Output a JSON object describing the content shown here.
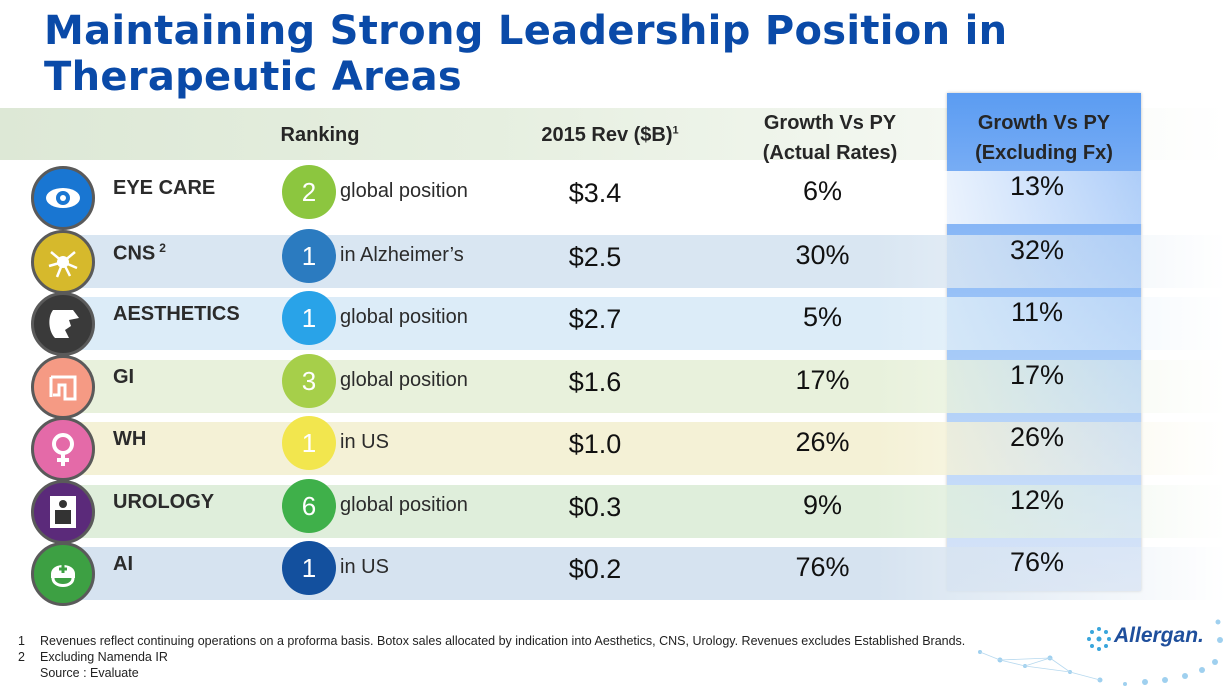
{
  "title": "Maintaining Strong Leadership Position in Therapeutic Areas",
  "headers": {
    "ranking": "Ranking",
    "rev": "2015 Rev ($B)",
    "rev_sup": "1",
    "growth_actual_1": "Growth Vs PY",
    "growth_actual_2": "(Actual Rates)",
    "growth_fx_1": "Growth Vs PY",
    "growth_fx_2": "(Excluding Fx)"
  },
  "rows": [
    {
      "name": "EYE CARE",
      "sup": "",
      "rank": "2",
      "rank_desc": "global position",
      "rev": "$3.4",
      "growth_actual": "6%",
      "growth_fx": "13%",
      "icon": "eye-icon",
      "icon_color": "#1976d2",
      "rank_color": "#8cc63f",
      "band": "#ffffff"
    },
    {
      "name": "CNS",
      "sup": "2",
      "rank": "1",
      "rank_desc": "in Alzheimer’s",
      "rev": "$2.5",
      "growth_actual": "30%",
      "growth_fx": "32%",
      "icon": "neuron-icon",
      "icon_color": "#d6b92c",
      "rank_color": "#2b7bc0",
      "band": "#d9e6f2"
    },
    {
      "name": "AESTHETICS",
      "sup": "",
      "rank": "1",
      "rank_desc": "global position",
      "rev": "$2.7",
      "growth_actual": "5%",
      "growth_fx": "11%",
      "icon": "face-profile-icon",
      "icon_color": "#3a3a3a",
      "rank_color": "#29a3e8",
      "band": "#dcecf8"
    },
    {
      "name": "GI",
      "sup": "",
      "rank": "3",
      "rank_desc": "global position",
      "rev": "$1.6",
      "growth_actual": "17%",
      "growth_fx": "17%",
      "icon": "intestine-icon",
      "icon_color": "#f59a84",
      "rank_color": "#a6cf4a",
      "band": "#e8f1dc"
    },
    {
      "name": "WH",
      "sup": "",
      "rank": "1",
      "rank_desc": "in US",
      "rev": "$1.0",
      "growth_actual": "26%",
      "growth_fx": "26%",
      "icon": "female-symbol-icon",
      "icon_color": "#e46aa8",
      "rank_color": "#f2e64e",
      "band": "#f4f1d6"
    },
    {
      "name": "UROLOGY",
      "sup": "",
      "rank": "6",
      "rank_desc": "global position",
      "rev": "$0.3",
      "growth_actual": "9%",
      "growth_fx": "12%",
      "icon": "restroom-icon",
      "icon_color": "#5b2a7a",
      "rank_color": "#3fb04a",
      "band": "#dfeedb"
    },
    {
      "name": "AI",
      "sup": "",
      "rank": "1",
      "rank_desc": "in US",
      "rev": "$0.2",
      "growth_actual": "76%",
      "growth_fx": "76%",
      "icon": "medic-icon",
      "icon_color": "#3da043",
      "rank_color": "#13509e",
      "band": "#d6e3f0"
    }
  ],
  "footnotes": {
    "fn1_num": "1",
    "fn1": "Revenues reflect continuing operations on a proforma basis.  Botox sales allocated by indication into Aesthetics, CNS, Urology. Revenues excludes Established Brands.",
    "fn2_num": "2",
    "fn2": "Excluding Namenda IR",
    "source": "Source : Evaluate"
  },
  "logo": "Allergan."
}
